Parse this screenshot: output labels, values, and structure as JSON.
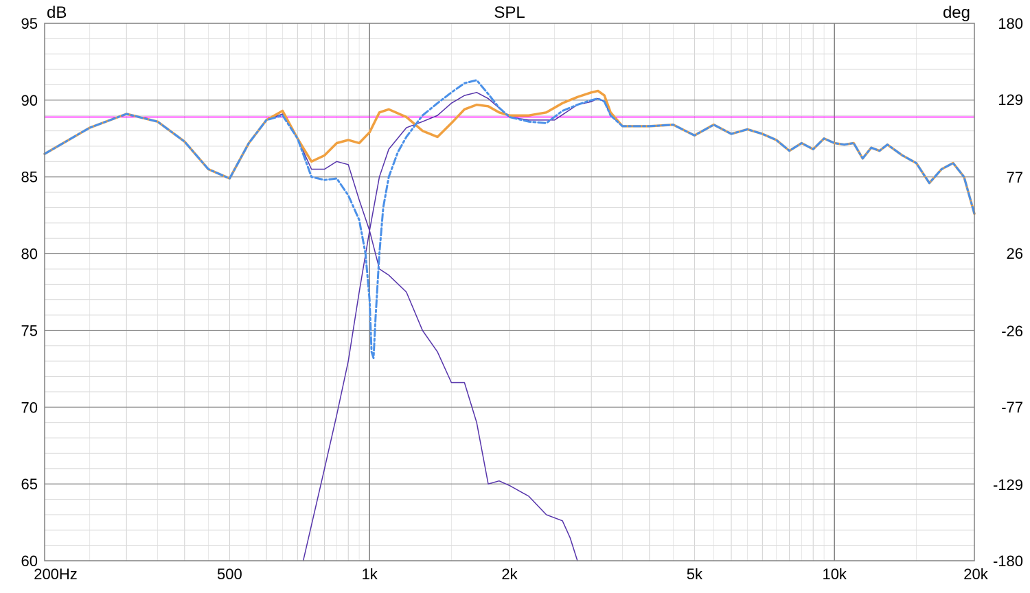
{
  "chart_data": {
    "type": "line",
    "title": "SPL",
    "ylabel": "dB",
    "y2label": "deg",
    "x_scale": "log",
    "xlim": [
      200,
      20000
    ],
    "ylim": [
      60,
      95
    ],
    "y2lim": [
      -180,
      180
    ],
    "grid": true,
    "x_ticks": [
      {
        "value": 200,
        "label": "200Hz"
      },
      {
        "value": 500,
        "label": "500"
      },
      {
        "value": 1000,
        "label": "1k"
      },
      {
        "value": 2000,
        "label": "2k"
      },
      {
        "value": 5000,
        "label": "5k"
      },
      {
        "value": 10000,
        "label": "10k"
      },
      {
        "value": 20000,
        "label": "20k"
      }
    ],
    "y_ticks": [
      {
        "value": 60,
        "label": "60"
      },
      {
        "value": 65,
        "label": "65"
      },
      {
        "value": 70,
        "label": "70"
      },
      {
        "value": 75,
        "label": "75"
      },
      {
        "value": 80,
        "label": "80"
      },
      {
        "value": 85,
        "label": "85"
      },
      {
        "value": 90,
        "label": "90"
      },
      {
        "value": 95,
        "label": "95"
      }
    ],
    "y2_ticks": [
      {
        "value": -180,
        "label": "-180"
      },
      {
        "value": -129,
        "label": "-129"
      },
      {
        "value": -77,
        "label": "-77"
      },
      {
        "value": -26,
        "label": "-26"
      },
      {
        "value": 26,
        "label": "26"
      },
      {
        "value": 77,
        "label": "77"
      },
      {
        "value": 129,
        "label": "129"
      },
      {
        "value": 180,
        "label": "180"
      }
    ],
    "series": [
      {
        "color": "#ff00ff",
        "width": 1.5,
        "dash": "",
        "x": [
          200,
          20000
        ],
        "y": [
          88.9,
          88.9
        ]
      },
      {
        "color": "#5533aa",
        "width": 1.5,
        "dash": "",
        "x": [
          200,
          250,
          300,
          350,
          400,
          450,
          500,
          550,
          600,
          650,
          700,
          750,
          800,
          850,
          900,
          950,
          1000,
          1050,
          1100,
          1200,
          1300,
          1400,
          1500,
          1600,
          1700,
          1800,
          1900,
          2000,
          2200,
          2400,
          2600,
          2700,
          2800
        ],
        "y": [
          86.5,
          88.2,
          89.1,
          88.6,
          87.3,
          85.5,
          84.9,
          87.2,
          88.7,
          89.1,
          87.5,
          85.5,
          85.5,
          86.0,
          85.8,
          83.5,
          81.5,
          79.0,
          78.6,
          77.5,
          75.0,
          73.6,
          71.6,
          71.6,
          69.0,
          65.0,
          65.2,
          64.9,
          64.2,
          63.0,
          62.6,
          61.5,
          60.0
        ]
      },
      {
        "color": "#5533aa",
        "width": 1.5,
        "dash": "",
        "x": [
          720,
          800,
          850,
          900,
          950,
          1000,
          1050,
          1100,
          1200,
          1300,
          1400,
          1500,
          1600,
          1700,
          1800,
          2000,
          2200,
          2500,
          2800,
          3000,
          3100,
          3200,
          3300,
          3500,
          4000,
          4500,
          5000,
          5500,
          6000,
          6500,
          7000,
          7500,
          8000,
          8500,
          9000,
          9500,
          10000,
          10500,
          11000,
          11500,
          12000,
          12500,
          13000,
          14000,
          15000,
          16000,
          17000,
          18000,
          19000,
          20000
        ],
        "y": [
          60.0,
          66.0,
          69.5,
          73.0,
          77.5,
          81.5,
          85.0,
          86.8,
          88.2,
          88.6,
          89.0,
          89.8,
          90.3,
          90.5,
          90.1,
          88.9,
          88.7,
          88.7,
          89.7,
          89.9,
          90.1,
          89.9,
          89.0,
          88.3,
          88.3,
          88.4,
          87.7,
          88.4,
          87.8,
          88.1,
          87.8,
          87.4,
          86.7,
          87.2,
          86.8,
          87.5,
          87.2,
          87.1,
          87.2,
          86.2,
          86.9,
          86.7,
          87.1,
          86.4,
          85.9,
          84.6,
          85.5,
          85.9,
          85.0,
          82.6
        ]
      },
      {
        "color": "#f0a040",
        "width": 3.5,
        "dash": "",
        "x": [
          200,
          250,
          300,
          350,
          400,
          450,
          500,
          550,
          600,
          650,
          700,
          750,
          800,
          850,
          900,
          950,
          1000,
          1050,
          1100,
          1200,
          1300,
          1400,
          1500,
          1600,
          1700,
          1800,
          1900,
          2000,
          2200,
          2400,
          2600,
          2800,
          3000,
          3100,
          3200,
          3300,
          3500,
          4000,
          4500,
          5000,
          5500,
          6000,
          6500,
          7000,
          7500,
          8000,
          8500,
          9000,
          9500,
          10000,
          10500,
          11000,
          11500,
          12000,
          12500,
          13000,
          14000,
          15000,
          16000,
          17000,
          18000,
          19000,
          20000
        ],
        "y": [
          86.5,
          88.2,
          89.1,
          88.6,
          87.3,
          85.5,
          84.9,
          87.2,
          88.7,
          89.3,
          87.5,
          86.0,
          86.4,
          87.2,
          87.4,
          87.2,
          87.9,
          89.2,
          89.4,
          88.9,
          88.0,
          87.6,
          88.5,
          89.4,
          89.7,
          89.6,
          89.2,
          89.0,
          89.0,
          89.2,
          89.8,
          90.2,
          90.5,
          90.6,
          90.3,
          89.2,
          88.3,
          88.3,
          88.4,
          87.7,
          88.4,
          87.8,
          88.1,
          87.8,
          87.4,
          86.7,
          87.2,
          86.8,
          87.5,
          87.2,
          87.1,
          87.2,
          86.2,
          86.9,
          86.7,
          87.1,
          86.4,
          85.9,
          84.6,
          85.5,
          85.9,
          85.0,
          82.6
        ]
      },
      {
        "color": "#4a90e8",
        "width": 3,
        "dash": "10,4,3,4",
        "x": [
          200,
          250,
          300,
          350,
          400,
          450,
          500,
          550,
          600,
          650,
          700,
          750,
          800,
          850,
          900,
          950,
          980,
          1000,
          1010,
          1020,
          1030,
          1050,
          1070,
          1100,
          1150,
          1200,
          1300,
          1400,
          1500,
          1600,
          1700,
          1800,
          1900,
          2000,
          2200,
          2400,
          2600,
          2800,
          3000,
          3100,
          3200,
          3300,
          3500,
          4000,
          4500,
          5000,
          5500,
          6000,
          6500,
          7000,
          7500,
          8000,
          8500,
          9000,
          9500,
          10000,
          10500,
          11000,
          11500,
          12000,
          12500,
          13000,
          14000,
          15000,
          16000,
          17000,
          18000,
          19000,
          20000
        ],
        "y": [
          86.5,
          88.2,
          89.1,
          88.6,
          87.3,
          85.5,
          84.9,
          87.2,
          88.7,
          89.0,
          87.5,
          85.0,
          84.8,
          84.9,
          83.8,
          82.2,
          80.0,
          77.0,
          73.6,
          73.2,
          75.8,
          80.0,
          83.0,
          85.0,
          86.6,
          87.6,
          89.0,
          89.8,
          90.5,
          91.1,
          91.3,
          90.4,
          89.5,
          88.9,
          88.6,
          88.5,
          89.3,
          89.7,
          90.0,
          90.1,
          89.9,
          89.0,
          88.3,
          88.3,
          88.4,
          87.7,
          88.4,
          87.8,
          88.1,
          87.8,
          87.4,
          86.7,
          87.2,
          86.8,
          87.5,
          87.2,
          87.1,
          87.2,
          86.2,
          86.9,
          86.7,
          87.1,
          86.4,
          85.9,
          84.6,
          85.5,
          85.9,
          85.0,
          82.6
        ]
      }
    ]
  }
}
